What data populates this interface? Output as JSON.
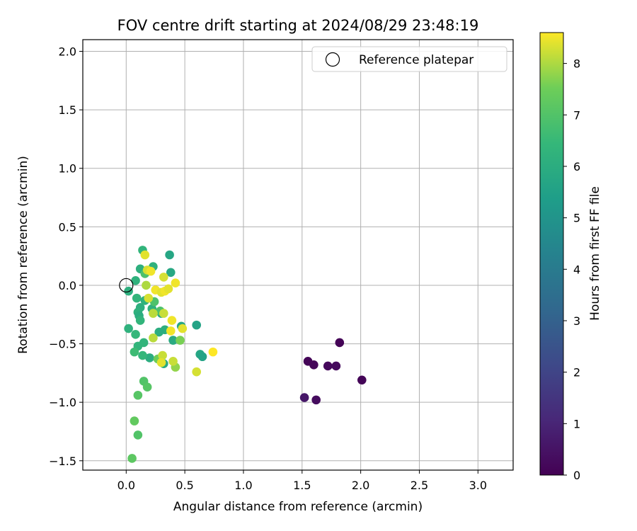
{
  "chart_data": {
    "type": "scatter",
    "title": "FOV centre drift starting at 2024/08/29 23:48:19",
    "xlabel": "Angular distance from reference (arcmin)",
    "ylabel": "Rotation from reference (arcmin)",
    "xlim": [
      -0.37,
      3.3
    ],
    "ylim": [
      -1.58,
      2.1
    ],
    "xticks": [
      0.0,
      0.5,
      1.0,
      1.5,
      2.0,
      2.5,
      3.0
    ],
    "xtick_labels": [
      "0.0",
      "0.5",
      "1.0",
      "1.5",
      "2.0",
      "2.5",
      "3.0"
    ],
    "yticks": [
      -1.5,
      -1.0,
      -0.5,
      0.0,
      0.5,
      1.0,
      1.5,
      2.0
    ],
    "ytick_labels": [
      "−1.5",
      "−1.0",
      "−0.5",
      "0.0",
      "0.5",
      "1.0",
      "1.5",
      "2.0"
    ],
    "grid": true,
    "legend": {
      "position": "top-right",
      "entries": [
        "Reference platepar"
      ]
    },
    "reference_point": {
      "x": 0.0,
      "y": 0.0,
      "label": "Reference platepar"
    },
    "colorbar": {
      "label": "Hours from first FF file",
      "colormap": "viridis",
      "range": [
        0,
        8.6
      ],
      "ticks": [
        0,
        1,
        2,
        3,
        4,
        5,
        6,
        7,
        8
      ],
      "tick_labels": [
        "0",
        "1",
        "2",
        "3",
        "4",
        "5",
        "6",
        "7",
        "8"
      ]
    },
    "points": [
      {
        "x": 1.52,
        "y": -0.96,
        "h": 0.6
      },
      {
        "x": 1.55,
        "y": -0.65,
        "h": 0.1
      },
      {
        "x": 1.6,
        "y": -0.68,
        "h": 0.15
      },
      {
        "x": 1.62,
        "y": -0.98,
        "h": 0.3
      },
      {
        "x": 1.72,
        "y": -0.69,
        "h": 0.2
      },
      {
        "x": 1.79,
        "y": -0.69,
        "h": 0.25
      },
      {
        "x": 1.82,
        "y": -0.49,
        "h": 0.05
      },
      {
        "x": 2.01,
        "y": -0.81,
        "h": 0.1
      },
      {
        "x": 0.37,
        "y": 0.26,
        "h": 5.7
      },
      {
        "x": 0.38,
        "y": 0.11,
        "h": 5.8
      },
      {
        "x": 0.6,
        "y": -0.34,
        "h": 5.6
      },
      {
        "x": 0.47,
        "y": -0.35,
        "h": 5.7
      },
      {
        "x": 0.63,
        "y": -0.59,
        "h": 5.7
      },
      {
        "x": 0.65,
        "y": -0.61,
        "h": 5.6
      },
      {
        "x": 0.4,
        "y": -0.47,
        "h": 5.9
      },
      {
        "x": 0.32,
        "y": -0.67,
        "h": 5.9
      },
      {
        "x": 0.3,
        "y": -0.24,
        "h": 5.8
      },
      {
        "x": 0.2,
        "y": -0.62,
        "h": 6.0
      },
      {
        "x": 0.14,
        "y": 0.3,
        "h": 6.3
      },
      {
        "x": 0.12,
        "y": 0.14,
        "h": 6.1
      },
      {
        "x": 0.23,
        "y": 0.16,
        "h": 6.2
      },
      {
        "x": 0.08,
        "y": 0.04,
        "h": 6.2
      },
      {
        "x": 0.02,
        "y": -0.05,
        "h": 6.1
      },
      {
        "x": 0.09,
        "y": -0.11,
        "h": 6.3
      },
      {
        "x": 0.16,
        "y": -0.13,
        "h": 6.2
      },
      {
        "x": 0.12,
        "y": -0.19,
        "h": 6.1
      },
      {
        "x": 0.1,
        "y": -0.23,
        "h": 6.2
      },
      {
        "x": 0.11,
        "y": -0.26,
        "h": 6.0
      },
      {
        "x": 0.12,
        "y": -0.3,
        "h": 6.3
      },
      {
        "x": 0.22,
        "y": -0.2,
        "h": 6.2
      },
      {
        "x": 0.02,
        "y": -0.37,
        "h": 6.2
      },
      {
        "x": 0.08,
        "y": -0.42,
        "h": 6.4
      },
      {
        "x": 0.15,
        "y": -0.49,
        "h": 6.3
      },
      {
        "x": 0.1,
        "y": -0.52,
        "h": 6.3
      },
      {
        "x": 0.07,
        "y": -0.57,
        "h": 6.6
      },
      {
        "x": 0.14,
        "y": -0.6,
        "h": 6.4
      },
      {
        "x": 0.33,
        "y": -0.38,
        "h": 6.1
      },
      {
        "x": 0.28,
        "y": -0.4,
        "h": 6.0
      },
      {
        "x": 0.15,
        "y": -0.82,
        "h": 7.0
      },
      {
        "x": 0.18,
        "y": -0.87,
        "h": 7.1
      },
      {
        "x": 0.1,
        "y": -0.94,
        "h": 7.1
      },
      {
        "x": 0.07,
        "y": -1.16,
        "h": 7.3
      },
      {
        "x": 0.1,
        "y": -1.28,
        "h": 7.0
      },
      {
        "x": 0.05,
        "y": -1.48,
        "h": 7.2
      },
      {
        "x": 0.16,
        "y": 0.1,
        "h": 6.9
      },
      {
        "x": 0.24,
        "y": -0.14,
        "h": 6.9
      },
      {
        "x": 0.29,
        "y": -0.22,
        "h": 6.9
      },
      {
        "x": 0.27,
        "y": -0.63,
        "h": 7.5
      },
      {
        "x": 0.42,
        "y": -0.7,
        "h": 7.8
      },
      {
        "x": 0.46,
        "y": -0.47,
        "h": 7.6
      },
      {
        "x": 0.16,
        "y": 0.26,
        "h": 8.4
      },
      {
        "x": 0.18,
        "y": 0.13,
        "h": 8.3
      },
      {
        "x": 0.21,
        "y": 0.12,
        "h": 8.5
      },
      {
        "x": 0.32,
        "y": 0.07,
        "h": 8.3
      },
      {
        "x": 0.17,
        "y": 0.0,
        "h": 8.0
      },
      {
        "x": 0.25,
        "y": -0.04,
        "h": 8.5
      },
      {
        "x": 0.3,
        "y": -0.06,
        "h": 8.4
      },
      {
        "x": 0.33,
        "y": -0.05,
        "h": 8.5
      },
      {
        "x": 0.36,
        "y": -0.03,
        "h": 8.4
      },
      {
        "x": 0.42,
        "y": 0.02,
        "h": 8.5
      },
      {
        "x": 0.19,
        "y": -0.11,
        "h": 8.3
      },
      {
        "x": 0.23,
        "y": -0.24,
        "h": 8.1
      },
      {
        "x": 0.32,
        "y": -0.24,
        "h": 8.2
      },
      {
        "x": 0.39,
        "y": -0.3,
        "h": 8.5
      },
      {
        "x": 0.38,
        "y": -0.39,
        "h": 8.5
      },
      {
        "x": 0.48,
        "y": -0.37,
        "h": 8.4
      },
      {
        "x": 0.23,
        "y": -0.45,
        "h": 8.1
      },
      {
        "x": 0.31,
        "y": -0.6,
        "h": 8.2
      },
      {
        "x": 0.3,
        "y": -0.66,
        "h": 8.4
      },
      {
        "x": 0.4,
        "y": -0.65,
        "h": 8.2
      },
      {
        "x": 0.6,
        "y": -0.74,
        "h": 8.3
      },
      {
        "x": 0.74,
        "y": -0.57,
        "h": 8.6
      }
    ]
  }
}
